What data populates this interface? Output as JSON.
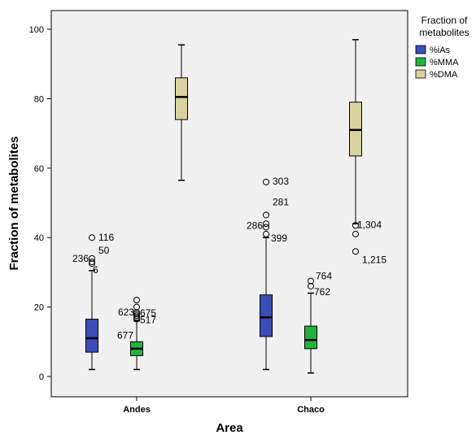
{
  "chart_data": {
    "type": "boxplot",
    "xlabel": "Area",
    "ylabel": "Fraction of metabolites",
    "ylim": [
      -5,
      105
    ],
    "yticks": [
      0,
      20,
      40,
      60,
      80,
      100
    ],
    "grid": false,
    "legend": {
      "title_lines": [
        "Fraction of",
        "metabolites"
      ],
      "placement": "right"
    },
    "categories": [
      "Andes",
      "Chaco"
    ],
    "series": [
      {
        "name": "%iAs",
        "color": "#3b4db8",
        "boxes": [
          {
            "category": "Andes",
            "min": 2,
            "q1": 7,
            "median": 11,
            "q3": 16.5,
            "max": 30.5,
            "outliers": [
              {
                "value": 40,
                "label": "116"
              },
              {
                "value": 34,
                "label": "50"
              },
              {
                "value": 33,
                "label": "236"
              },
              {
                "value": 32.5,
                "label": "6"
              }
            ]
          },
          {
            "category": "Chaco",
            "min": 2,
            "q1": 11.5,
            "median": 17,
            "q3": 23.5,
            "max": 40,
            "outliers": [
              {
                "value": 56,
                "label": "303"
              },
              {
                "value": 46.5,
                "label": "281"
              },
              {
                "value": 44,
                "label": ""
              },
              {
                "value": 43,
                "label": "286"
              },
              {
                "value": 41,
                "label": "399"
              }
            ]
          }
        ]
      },
      {
        "name": "%MMA",
        "color": "#1fb33a",
        "boxes": [
          {
            "category": "Andes",
            "min": 2,
            "q1": 6,
            "median": 8,
            "q3": 10,
            "max": 16,
            "outliers": [
              {
                "value": 22,
                "label": ""
              },
              {
                "value": 20,
                "label": ""
              },
              {
                "value": 18.5,
                "label": "675"
              },
              {
                "value": 18,
                "label": "623"
              },
              {
                "value": 17.5,
                "label": ""
              },
              {
                "value": 17,
                "label": "517"
              },
              {
                "value": 16.5,
                "label": "677"
              }
            ]
          },
          {
            "category": "Chaco",
            "min": 1,
            "q1": 8,
            "median": 10.5,
            "q3": 14.5,
            "max": 24,
            "outliers": [
              {
                "value": 27.5,
                "label": "764"
              },
              {
                "value": 26,
                "label": "762"
              }
            ]
          }
        ]
      },
      {
        "name": "%DMA",
        "color": "#d9d29d",
        "boxes": [
          {
            "category": "Andes",
            "min": 56.5,
            "q1": 74,
            "median": 80.5,
            "q3": 86,
            "max": 95.5,
            "outliers": []
          },
          {
            "category": "Chaco",
            "min": 44,
            "q1": 63.5,
            "median": 71,
            "q3": 79,
            "max": 97,
            "outliers": [
              {
                "value": 43.5,
                "label": "1,304"
              },
              {
                "value": 41,
                "label": ""
              },
              {
                "value": 36,
                "label": "1,215"
              }
            ]
          }
        ]
      }
    ]
  }
}
